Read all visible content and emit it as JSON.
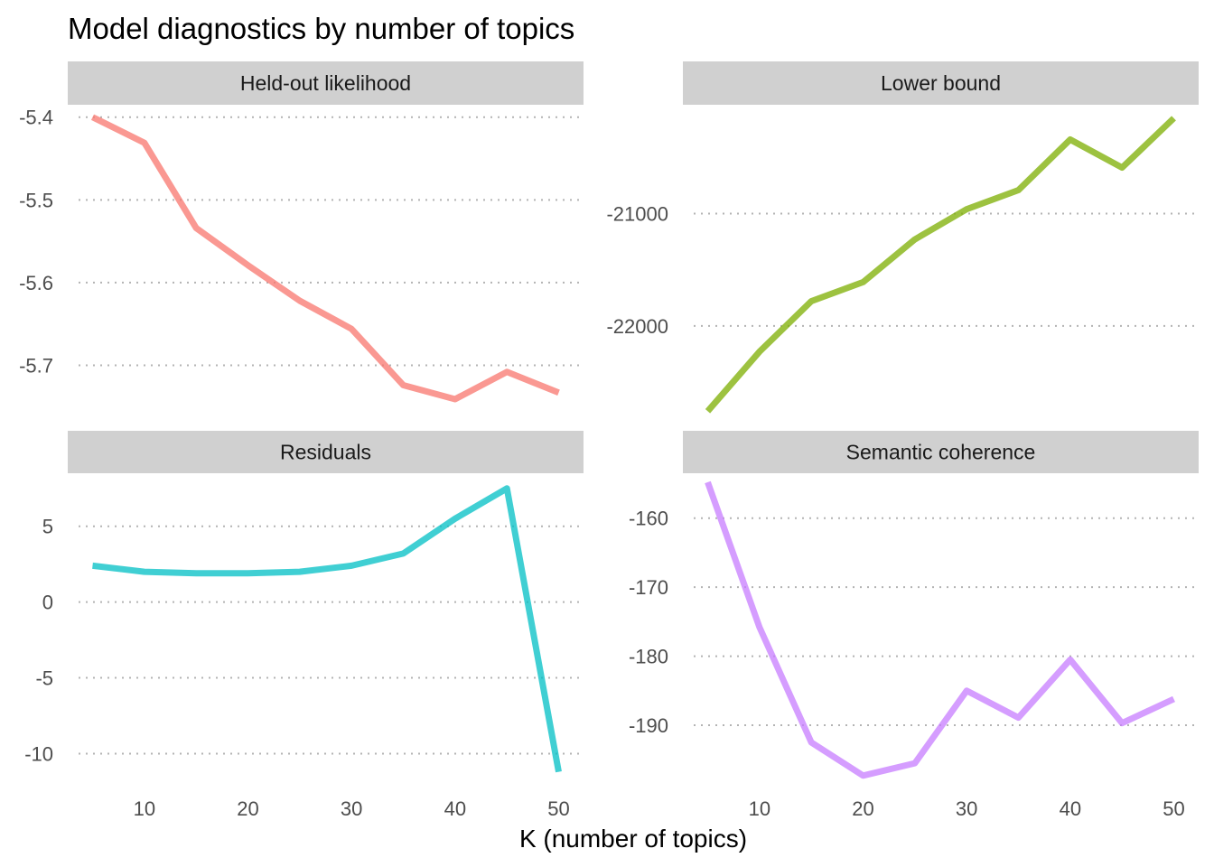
{
  "chart_data": {
    "type": "line",
    "title": "Model diagnostics by number of topics",
    "xlabel": "K (number of topics)",
    "ylabel": "",
    "x": [
      5,
      10,
      15,
      20,
      25,
      30,
      35,
      40,
      45,
      50
    ],
    "xlim": [
      2.6,
      52.4
    ],
    "xticks": [
      10,
      20,
      30,
      40,
      50
    ],
    "grid": "horizontal dotted",
    "facets": [
      {
        "name": "Held-out likelihood",
        "color": "#F8766D",
        "values": [
          -5.4,
          -5.431,
          -5.534,
          -5.579,
          -5.622,
          -5.656,
          -5.724,
          -5.741,
          -5.708,
          -5.733
        ],
        "ylim": [
          -5.765,
          -5.385
        ],
        "yticks": [
          -5.4,
          -5.5,
          -5.6,
          -5.7
        ],
        "ytick_labels": [
          "-5.4",
          "-5.5",
          "-5.6",
          "-5.7"
        ]
      },
      {
        "name": "Lower bound",
        "color": "#7CAE00",
        "values": [
          -22760,
          -22230,
          -21780,
          -21610,
          -21230,
          -20960,
          -20790,
          -20340,
          -20590,
          -20150
        ],
        "ylim": [
          -22830,
          -20030
        ],
        "yticks": [
          -21000,
          -22000
        ],
        "ytick_labels": [
          "-21000",
          "-22000"
        ]
      },
      {
        "name": "Residuals",
        "color": "#00BFC4",
        "values": [
          2.4,
          2.0,
          1.9,
          1.9,
          2.0,
          2.4,
          3.2,
          5.5,
          7.5,
          -11.2
        ],
        "ylim": [
          -12.0,
          8.5
        ],
        "yticks": [
          5,
          0,
          -5,
          -10
        ],
        "ytick_labels": [
          "5",
          "0",
          "-5",
          "-10"
        ]
      },
      {
        "name": "Semantic coherence",
        "color": "#C77CFF",
        "values": [
          -154.8,
          -175.8,
          -192.5,
          -197.3,
          -195.5,
          -185.0,
          -188.9,
          -180.5,
          -189.7,
          -186.2
        ],
        "ylim": [
          -198.5,
          -153.5
        ],
        "yticks": [
          -160,
          -170,
          -180,
          -190
        ],
        "ytick_labels": [
          "-160",
          "-170",
          "-180",
          "-190"
        ]
      }
    ]
  }
}
